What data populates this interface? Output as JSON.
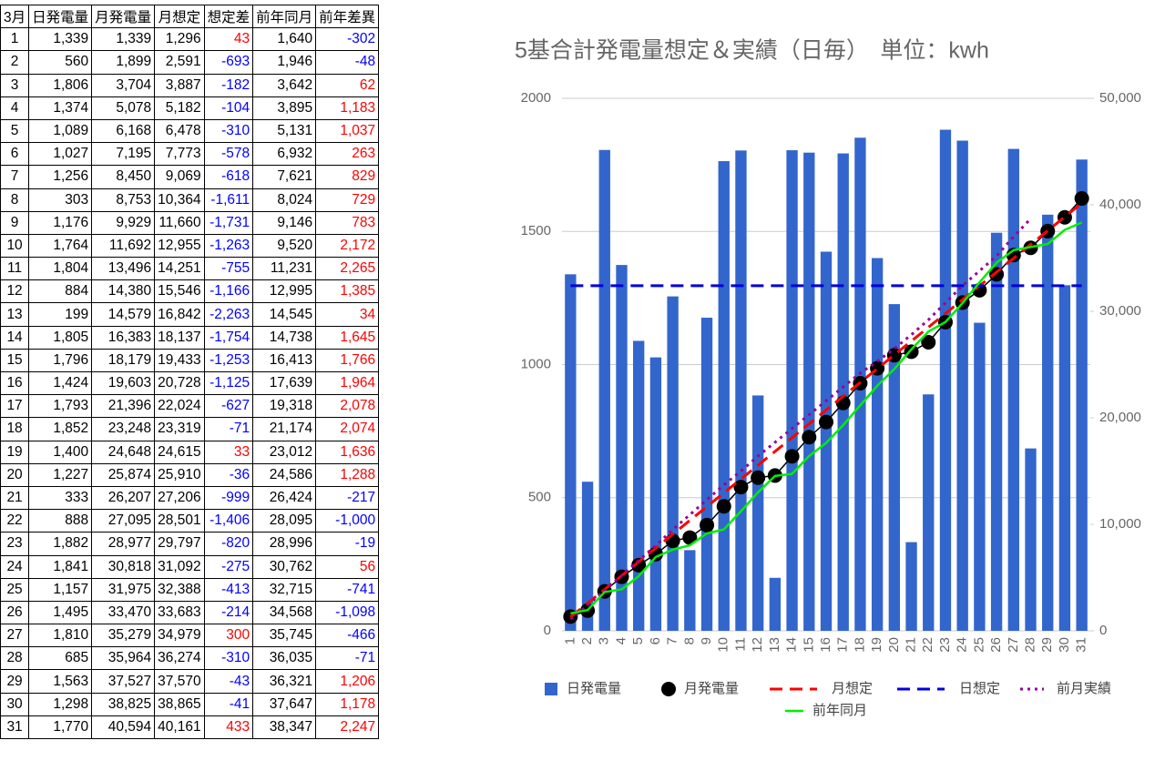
{
  "table": {
    "header": [
      "3月",
      "日発電量",
      "月発電量",
      "月想定",
      "想定差",
      "前年同月",
      "前年差異"
    ],
    "rows": [
      [
        "1",
        "1,339",
        "1,339",
        "1,296",
        "43",
        "1,640",
        "-302"
      ],
      [
        "2",
        "560",
        "1,899",
        "2,591",
        "-693",
        "1,946",
        "-48"
      ],
      [
        "3",
        "1,806",
        "3,704",
        "3,887",
        "-182",
        "3,642",
        "62"
      ],
      [
        "4",
        "1,374",
        "5,078",
        "5,182",
        "-104",
        "3,895",
        "1,183"
      ],
      [
        "5",
        "1,089",
        "6,168",
        "6,478",
        "-310",
        "5,131",
        "1,037"
      ],
      [
        "6",
        "1,027",
        "7,195",
        "7,773",
        "-578",
        "6,932",
        "263"
      ],
      [
        "7",
        "1,256",
        "8,450",
        "9,069",
        "-618",
        "7,621",
        "829"
      ],
      [
        "8",
        "303",
        "8,753",
        "10,364",
        "-1,611",
        "8,024",
        "729"
      ],
      [
        "9",
        "1,176",
        "9,929",
        "11,660",
        "-1,731",
        "9,146",
        "783"
      ],
      [
        "10",
        "1,764",
        "11,692",
        "12,955",
        "-1,263",
        "9,520",
        "2,172"
      ],
      [
        "11",
        "1,804",
        "13,496",
        "14,251",
        "-755",
        "11,231",
        "2,265"
      ],
      [
        "12",
        "884",
        "14,380",
        "15,546",
        "-1,166",
        "12,995",
        "1,385"
      ],
      [
        "13",
        "199",
        "14,579",
        "16,842",
        "-2,263",
        "14,545",
        "34"
      ],
      [
        "14",
        "1,805",
        "16,383",
        "18,137",
        "-1,754",
        "14,738",
        "1,645"
      ],
      [
        "15",
        "1,796",
        "18,179",
        "19,433",
        "-1,253",
        "16,413",
        "1,766"
      ],
      [
        "16",
        "1,424",
        "19,603",
        "20,728",
        "-1,125",
        "17,639",
        "1,964"
      ],
      [
        "17",
        "1,793",
        "21,396",
        "22,024",
        "-627",
        "19,318",
        "2,078"
      ],
      [
        "18",
        "1,852",
        "23,248",
        "23,319",
        "-71",
        "21,174",
        "2,074"
      ],
      [
        "19",
        "1,400",
        "24,648",
        "24,615",
        "33",
        "23,012",
        "1,636"
      ],
      [
        "20",
        "1,227",
        "25,874",
        "25,910",
        "-36",
        "24,586",
        "1,288"
      ],
      [
        "21",
        "333",
        "26,207",
        "27,206",
        "-999",
        "26,424",
        "-217"
      ],
      [
        "22",
        "888",
        "27,095",
        "28,501",
        "-1,406",
        "28,095",
        "-1,000"
      ],
      [
        "23",
        "1,882",
        "28,977",
        "29,797",
        "-820",
        "28,996",
        "-19"
      ],
      [
        "24",
        "1,841",
        "30,818",
        "31,092",
        "-275",
        "30,762",
        "56"
      ],
      [
        "25",
        "1,157",
        "31,975",
        "32,388",
        "-413",
        "32,715",
        "-741"
      ],
      [
        "26",
        "1,495",
        "33,470",
        "33,683",
        "-214",
        "34,568",
        "-1,098"
      ],
      [
        "27",
        "1,810",
        "35,279",
        "34,979",
        "300",
        "35,745",
        "-466"
      ],
      [
        "28",
        "685",
        "35,964",
        "36,274",
        "-310",
        "36,035",
        "-71"
      ],
      [
        "29",
        "1,563",
        "37,527",
        "37,570",
        "-43",
        "36,321",
        "1,206"
      ],
      [
        "30",
        "1,298",
        "38,825",
        "38,865",
        "-41",
        "37,647",
        "1,178"
      ],
      [
        "31",
        "1,770",
        "40,594",
        "40,161",
        "433",
        "38,347",
        "2,247"
      ]
    ]
  },
  "chart_data": {
    "type": "bar",
    "title": "5基合計発電量想定＆実績（日毎）　単位：kwh",
    "categories": [
      "1",
      "2",
      "3",
      "4",
      "5",
      "6",
      "7",
      "8",
      "9",
      "10",
      "11",
      "12",
      "13",
      "14",
      "15",
      "16",
      "17",
      "18",
      "19",
      "20",
      "21",
      "22",
      "23",
      "24",
      "25",
      "26",
      "27",
      "28",
      "29",
      "30",
      "31"
    ],
    "ylim": [
      0,
      2000
    ],
    "yticks": [
      0,
      500,
      1000,
      1500,
      2000
    ],
    "y2lim": [
      0,
      50000
    ],
    "y2ticks": [
      0,
      {
        "value": 10000,
        "label": "10,000"
      },
      {
        "value": 20000,
        "label": "20,000"
      },
      {
        "value": 30000,
        "label": "30,000"
      },
      {
        "value": 40000,
        "label": "40,000"
      },
      {
        "value": 50000,
        "label": "50,000"
      }
    ],
    "grid": true,
    "series": [
      {
        "name": "日発電量",
        "type": "bar",
        "color": "#3366cc",
        "values": [
          1339,
          560,
          1806,
          1374,
          1089,
          1027,
          1256,
          303,
          1176,
          1764,
          1804,
          884,
          199,
          1805,
          1796,
          1424,
          1793,
          1852,
          1400,
          1227,
          333,
          888,
          1882,
          1841,
          1157,
          1495,
          1810,
          685,
          1563,
          1298,
          1770
        ]
      },
      {
        "name": "月発電量",
        "type": "dots",
        "color": "#000000",
        "axis": "y2",
        "values": [
          1339,
          1899,
          3704,
          5078,
          6168,
          7195,
          8450,
          8753,
          9929,
          11692,
          13496,
          14380,
          14579,
          16383,
          18179,
          19603,
          21396,
          23248,
          24648,
          25874,
          26207,
          27095,
          28977,
          30818,
          31975,
          33470,
          35279,
          35964,
          37527,
          38825,
          40594
        ]
      },
      {
        "name": "月想定",
        "type": "dashed",
        "color": "#ff0000",
        "axis": "y2",
        "values": [
          1296,
          2591,
          3887,
          5182,
          6478,
          7773,
          9069,
          10364,
          11660,
          12955,
          14251,
          15546,
          16842,
          18137,
          19433,
          20728,
          22024,
          23319,
          24615,
          25910,
          27206,
          28501,
          29797,
          31092,
          32388,
          33683,
          34979,
          36274,
          37570,
          38865,
          40161
        ]
      },
      {
        "name": "日想定",
        "type": "dashed",
        "color": "#0000dd",
        "values": [
          1296,
          1296,
          1296,
          1296,
          1296,
          1296,
          1296,
          1296,
          1296,
          1296,
          1296,
          1296,
          1296,
          1296,
          1296,
          1296,
          1296,
          1296,
          1296,
          1296,
          1296,
          1296,
          1296,
          1296,
          1296,
          1296,
          1296,
          1296,
          1296,
          1296,
          1296
        ]
      },
      {
        "name": "前月実績",
        "type": "dotted",
        "color": "#990099",
        "axis": "y2",
        "values": [
          1100,
          2400,
          3800,
          5200,
          6600,
          8000,
          9500,
          10900,
          12300,
          13700,
          15000,
          16400,
          17700,
          19000,
          20300,
          21600,
          22900,
          24200,
          25300,
          26500,
          27800,
          29200,
          30800,
          32400,
          33800,
          35200,
          37000,
          38700,
          null,
          null,
          null
        ]
      },
      {
        "name": "前年同月",
        "type": "line",
        "color": "#00ee00",
        "axis": "y2",
        "values": [
          1640,
          1946,
          3642,
          3895,
          5131,
          6932,
          7621,
          8024,
          9146,
          9520,
          11231,
          12995,
          14545,
          14738,
          16413,
          17639,
          19318,
          21174,
          23012,
          24586,
          26424,
          28095,
          28996,
          30762,
          32715,
          34568,
          35745,
          36035,
          36321,
          37647,
          38347
        ]
      }
    ]
  }
}
